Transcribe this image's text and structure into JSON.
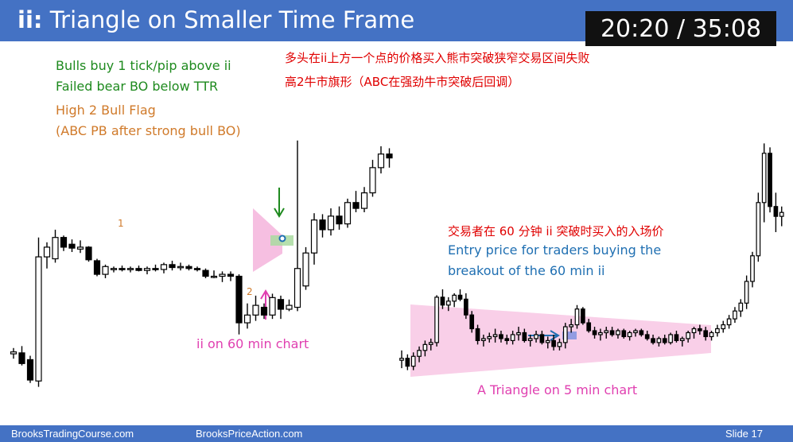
{
  "header": {
    "title_prefix": "ii:",
    "title_main": " Triangle on Smaller Time Frame",
    "timer": "20:20 / 35:08"
  },
  "annotations": {
    "green_line1": "Bulls buy 1 tick/pip above ii",
    "green_line2": "Failed bear BO below TTR",
    "orange_line1": "High 2 Bull Flag",
    "orange_line2": "(ABC PB after strong bull BO)",
    "cn_line1": "多头在ii上方一个点的价格买入熊市突破狭窄交易区间失败",
    "cn_line2": "高2牛市旗形（ABC在强劲牛市突破后回调）",
    "cn_entry": "交易者在 60 分钟 ii 突破时买入的入场价",
    "entry_line1": "Entry price for traders buying the",
    "entry_line2": "breakout of the 60 min ii",
    "ii_label": "ii on 60 min chart",
    "triangle_label": "A Triangle on 5 min chart",
    "label_1": "1",
    "label_2": "2"
  },
  "footer": {
    "left": "BrooksTradingCourse.com",
    "center": "BrooksPriceAction.com",
    "slide": "Slide  17"
  },
  "colors": {
    "accent": "#4472c4",
    "green": "#1e8a1e",
    "orange": "#d07a2a",
    "red": "#e00000",
    "blue_text": "#1f6fb2",
    "magenta": "#e03fb0",
    "pink_fill": "#f7c6e6",
    "triangle_fill": "#f9cfe8"
  },
  "chart_data": [
    {
      "type": "candlestick",
      "timeframe": "60 min",
      "candles": [
        {
          "o": 90,
          "h": 96,
          "l": 85,
          "c": 92
        },
        {
          "o": 91,
          "h": 98,
          "l": 78,
          "c": 80
        },
        {
          "o": 84,
          "h": 88,
          "l": 60,
          "c": 63
        },
        {
          "o": 62,
          "h": 210,
          "l": 56,
          "c": 190
        },
        {
          "o": 190,
          "h": 205,
          "l": 178,
          "c": 200
        },
        {
          "o": 188,
          "h": 218,
          "l": 184,
          "c": 210
        },
        {
          "o": 210,
          "h": 212,
          "l": 196,
          "c": 200
        },
        {
          "o": 203,
          "h": 208,
          "l": 195,
          "c": 199
        },
        {
          "o": 198,
          "h": 207,
          "l": 194,
          "c": 200
        },
        {
          "o": 200,
          "h": 201,
          "l": 185,
          "c": 187
        },
        {
          "o": 186,
          "h": 188,
          "l": 170,
          "c": 172
        },
        {
          "o": 172,
          "h": 182,
          "l": 168,
          "c": 180
        },
        {
          "o": 178,
          "h": 180,
          "l": 174,
          "c": 178
        },
        {
          "o": 178,
          "h": 181,
          "l": 175,
          "c": 177
        },
        {
          "o": 177,
          "h": 180,
          "l": 174,
          "c": 178
        },
        {
          "o": 178,
          "h": 181,
          "l": 175,
          "c": 176
        },
        {
          "o": 176,
          "h": 180,
          "l": 172,
          "c": 178
        },
        {
          "o": 178,
          "h": 182,
          "l": 175,
          "c": 177
        },
        {
          "o": 177,
          "h": 184,
          "l": 173,
          "c": 182
        },
        {
          "o": 182,
          "h": 186,
          "l": 176,
          "c": 179
        },
        {
          "o": 179,
          "h": 184,
          "l": 176,
          "c": 180
        },
        {
          "o": 180,
          "h": 182,
          "l": 176,
          "c": 178
        },
        {
          "o": 178,
          "h": 180,
          "l": 175,
          "c": 177
        },
        {
          "o": 176,
          "h": 178,
          "l": 168,
          "c": 170
        },
        {
          "o": 170,
          "h": 176,
          "l": 168,
          "c": 170
        },
        {
          "o": 170,
          "h": 175,
          "l": 164,
          "c": 172
        },
        {
          "o": 172,
          "h": 175,
          "l": 165,
          "c": 170
        },
        {
          "o": 170,
          "h": 172,
          "l": 110,
          "c": 122
        },
        {
          "o": 122,
          "h": 142,
          "l": 116,
          "c": 130
        },
        {
          "o": 130,
          "h": 150,
          "l": 124,
          "c": 140
        },
        {
          "o": 138,
          "h": 142,
          "l": 126,
          "c": 130
        },
        {
          "o": 130,
          "h": 152,
          "l": 126,
          "c": 148
        },
        {
          "o": 146,
          "h": 150,
          "l": 126,
          "c": 136
        },
        {
          "o": 136,
          "h": 146,
          "l": 134,
          "c": 140
        },
        {
          "o": 138,
          "h": 310,
          "l": 134,
          "c": 178
        },
        {
          "o": 160,
          "h": 200,
          "l": 156,
          "c": 194
        },
        {
          "o": 194,
          "h": 235,
          "l": 182,
          "c": 228
        },
        {
          "o": 228,
          "h": 234,
          "l": 210,
          "c": 218
        },
        {
          "o": 218,
          "h": 240,
          "l": 212,
          "c": 232
        },
        {
          "o": 232,
          "h": 242,
          "l": 218,
          "c": 224
        },
        {
          "o": 224,
          "h": 250,
          "l": 220,
          "c": 246
        },
        {
          "o": 246,
          "h": 258,
          "l": 236,
          "c": 240
        },
        {
          "o": 240,
          "h": 262,
          "l": 236,
          "c": 256
        },
        {
          "o": 256,
          "h": 290,
          "l": 252,
          "c": 282
        },
        {
          "o": 282,
          "h": 304,
          "l": 276,
          "c": 296
        },
        {
          "o": 296,
          "h": 302,
          "l": 282,
          "c": 292
        }
      ]
    },
    {
      "type": "candlestick",
      "timeframe": "5 min",
      "candles": [
        {
          "o": 40,
          "h": 50,
          "l": 32,
          "c": 42
        },
        {
          "o": 42,
          "h": 46,
          "l": 30,
          "c": 34
        },
        {
          "o": 34,
          "h": 48,
          "l": 30,
          "c": 44
        },
        {
          "o": 44,
          "h": 54,
          "l": 38,
          "c": 50
        },
        {
          "o": 50,
          "h": 60,
          "l": 44,
          "c": 56
        },
        {
          "o": 56,
          "h": 62,
          "l": 50,
          "c": 58
        },
        {
          "o": 58,
          "h": 106,
          "l": 54,
          "c": 104
        },
        {
          "o": 104,
          "h": 112,
          "l": 92,
          "c": 96
        },
        {
          "o": 96,
          "h": 104,
          "l": 90,
          "c": 100
        },
        {
          "o": 100,
          "h": 108,
          "l": 94,
          "c": 106
        },
        {
          "o": 106,
          "h": 112,
          "l": 100,
          "c": 102
        },
        {
          "o": 102,
          "h": 108,
          "l": 82,
          "c": 86
        },
        {
          "o": 86,
          "h": 90,
          "l": 68,
          "c": 72
        },
        {
          "o": 72,
          "h": 76,
          "l": 56,
          "c": 60
        },
        {
          "o": 60,
          "h": 66,
          "l": 54,
          "c": 62
        },
        {
          "o": 62,
          "h": 68,
          "l": 58,
          "c": 64
        },
        {
          "o": 64,
          "h": 72,
          "l": 58,
          "c": 66
        },
        {
          "o": 66,
          "h": 70,
          "l": 58,
          "c": 62
        },
        {
          "o": 62,
          "h": 66,
          "l": 56,
          "c": 60
        },
        {
          "o": 60,
          "h": 70,
          "l": 56,
          "c": 66
        },
        {
          "o": 66,
          "h": 74,
          "l": 60,
          "c": 68
        },
        {
          "o": 68,
          "h": 72,
          "l": 58,
          "c": 60
        },
        {
          "o": 60,
          "h": 66,
          "l": 54,
          "c": 62
        },
        {
          "o": 62,
          "h": 70,
          "l": 58,
          "c": 66
        },
        {
          "o": 66,
          "h": 70,
          "l": 56,
          "c": 58
        },
        {
          "o": 58,
          "h": 64,
          "l": 52,
          "c": 60
        },
        {
          "o": 60,
          "h": 66,
          "l": 50,
          "c": 54
        },
        {
          "o": 54,
          "h": 62,
          "l": 50,
          "c": 58
        },
        {
          "o": 58,
          "h": 78,
          "l": 52,
          "c": 74
        },
        {
          "o": 74,
          "h": 82,
          "l": 68,
          "c": 76
        },
        {
          "o": 76,
          "h": 96,
          "l": 72,
          "c": 92
        },
        {
          "o": 92,
          "h": 94,
          "l": 76,
          "c": 78
        },
        {
          "o": 78,
          "h": 82,
          "l": 68,
          "c": 70
        },
        {
          "o": 70,
          "h": 74,
          "l": 62,
          "c": 66
        },
        {
          "o": 66,
          "h": 72,
          "l": 60,
          "c": 68
        },
        {
          "o": 68,
          "h": 74,
          "l": 62,
          "c": 70
        },
        {
          "o": 70,
          "h": 74,
          "l": 64,
          "c": 66
        },
        {
          "o": 66,
          "h": 72,
          "l": 62,
          "c": 70
        },
        {
          "o": 70,
          "h": 72,
          "l": 62,
          "c": 64
        },
        {
          "o": 64,
          "h": 70,
          "l": 60,
          "c": 68
        },
        {
          "o": 68,
          "h": 72,
          "l": 64,
          "c": 70
        },
        {
          "o": 70,
          "h": 72,
          "l": 64,
          "c": 66
        },
        {
          "o": 66,
          "h": 70,
          "l": 60,
          "c": 62
        },
        {
          "o": 62,
          "h": 66,
          "l": 56,
          "c": 58
        },
        {
          "o": 58,
          "h": 64,
          "l": 54,
          "c": 62
        },
        {
          "o": 62,
          "h": 66,
          "l": 56,
          "c": 58
        },
        {
          "o": 58,
          "h": 68,
          "l": 56,
          "c": 66
        },
        {
          "o": 66,
          "h": 70,
          "l": 58,
          "c": 60
        },
        {
          "o": 60,
          "h": 64,
          "l": 54,
          "c": 62
        },
        {
          "o": 62,
          "h": 70,
          "l": 58,
          "c": 68
        },
        {
          "o": 68,
          "h": 74,
          "l": 62,
          "c": 72
        },
        {
          "o": 72,
          "h": 76,
          "l": 66,
          "c": 70
        },
        {
          "o": 70,
          "h": 74,
          "l": 60,
          "c": 64
        },
        {
          "o": 64,
          "h": 70,
          "l": 60,
          "c": 68
        },
        {
          "o": 68,
          "h": 76,
          "l": 64,
          "c": 72
        },
        {
          "o": 72,
          "h": 80,
          "l": 68,
          "c": 76
        },
        {
          "o": 76,
          "h": 86,
          "l": 72,
          "c": 82
        },
        {
          "o": 82,
          "h": 94,
          "l": 78,
          "c": 90
        },
        {
          "o": 90,
          "h": 102,
          "l": 84,
          "c": 98
        },
        {
          "o": 98,
          "h": 126,
          "l": 92,
          "c": 120
        },
        {
          "o": 120,
          "h": 150,
          "l": 114,
          "c": 146
        },
        {
          "o": 146,
          "h": 210,
          "l": 140,
          "c": 200
        },
        {
          "o": 200,
          "h": 260,
          "l": 180,
          "c": 250
        },
        {
          "o": 250,
          "h": 256,
          "l": 190,
          "c": 196
        },
        {
          "o": 196,
          "h": 210,
          "l": 170,
          "c": 186
        },
        {
          "o": 186,
          "h": 196,
          "l": 176,
          "c": 190
        }
      ]
    }
  ]
}
